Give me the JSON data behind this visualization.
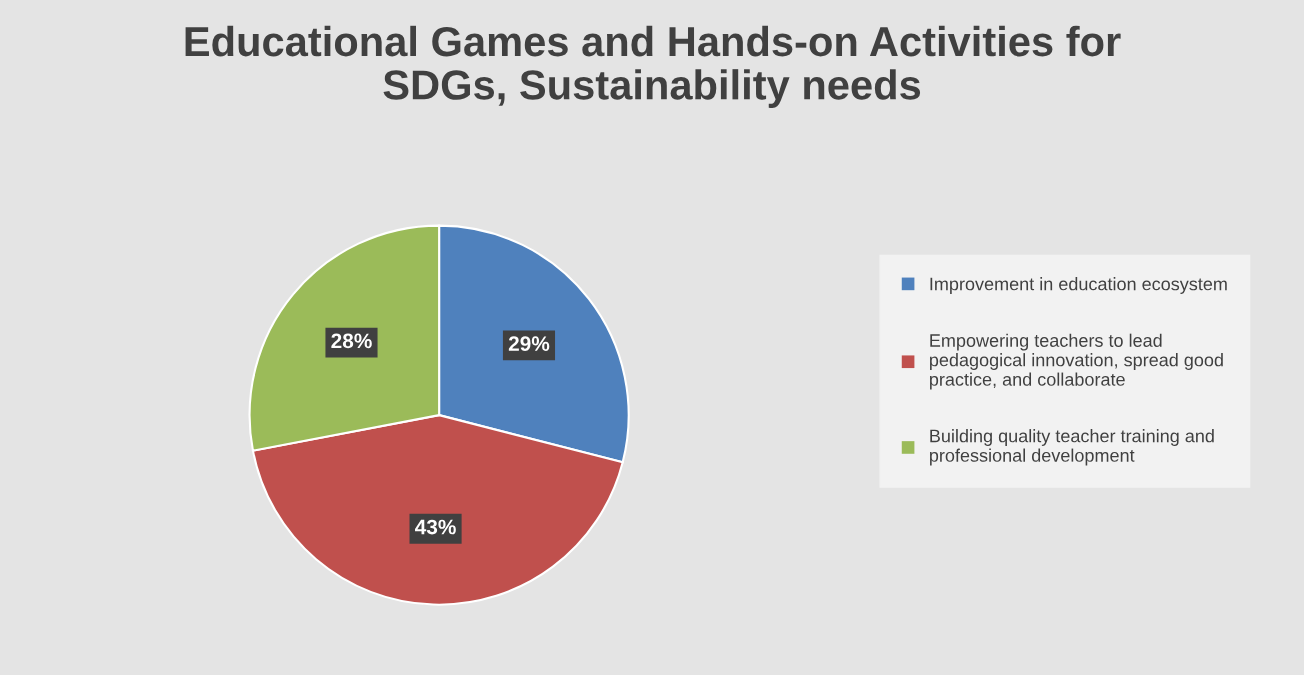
{
  "chart_data": {
    "type": "pie",
    "title": "Educational Games and Hands-on Activities for SDGs, Sustainability needs",
    "categories": [
      "Improvement in education ecosystem",
      "Empowering teachers to lead pedagogical innovation, spread good practice, and collaborate",
      "Building quality teacher training and professional development"
    ],
    "values": [
      29,
      43,
      28
    ],
    "colors": [
      "#4f81bd",
      "#c0504d",
      "#9bbb59"
    ],
    "value_labels": [
      "29%",
      "43%",
      "28%"
    ],
    "legend": "right"
  }
}
